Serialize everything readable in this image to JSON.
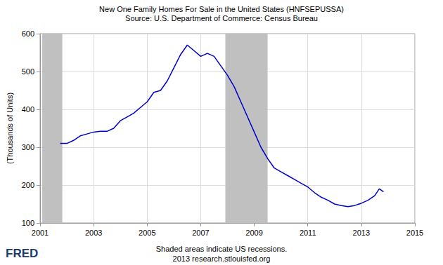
{
  "chart_data": {
    "type": "line",
    "title": "New One Family Homes For Sale in the United States (HNFSEPUSSA)",
    "subtitle": "Source: U.S. Department of Commerce: Census Bureau",
    "y_label": "(Thousands of Units)",
    "notes": [
      "Shaded areas indicate US recessions.",
      "2013 research.stlouisfed.org"
    ],
    "logo": "FRED",
    "color": "#0000cc",
    "x": [
      2001.75,
      2002.0,
      2002.25,
      2002.5,
      2002.75,
      2003.0,
      2003.25,
      2003.5,
      2003.75,
      2004.0,
      2004.25,
      2004.5,
      2004.75,
      2005.0,
      2005.25,
      2005.5,
      2005.75,
      2006.0,
      2006.25,
      2006.5,
      2006.75,
      2007.0,
      2007.25,
      2007.5,
      2007.75,
      2008.0,
      2008.25,
      2008.5,
      2008.75,
      2009.0,
      2009.25,
      2009.5,
      2009.75,
      2010.0,
      2010.25,
      2010.5,
      2010.75,
      2011.0,
      2011.25,
      2011.5,
      2011.75,
      2012.0,
      2012.25,
      2012.5,
      2012.75,
      2013.0,
      2013.25,
      2013.5,
      2013.67,
      2013.83
    ],
    "values": [
      310,
      310,
      318,
      330,
      335,
      340,
      342,
      342,
      350,
      370,
      380,
      390,
      405,
      420,
      445,
      450,
      475,
      510,
      545,
      570,
      555,
      540,
      548,
      540,
      515,
      490,
      460,
      420,
      380,
      340,
      300,
      270,
      245,
      235,
      225,
      215,
      205,
      195,
      180,
      168,
      160,
      150,
      146,
      143,
      146,
      152,
      160,
      172,
      190,
      182
    ],
    "recessions": [
      [
        2001.08,
        2001.83
      ],
      [
        2007.92,
        2009.5
      ]
    ],
    "xlim": [
      2001,
      2015
    ],
    "xticks": [
      2001,
      2003,
      2005,
      2007,
      2009,
      2011,
      2013,
      2015
    ],
    "ylim": [
      100,
      600
    ],
    "yticks": [
      100,
      200,
      300,
      400,
      500,
      600
    ],
    "grid": true
  }
}
